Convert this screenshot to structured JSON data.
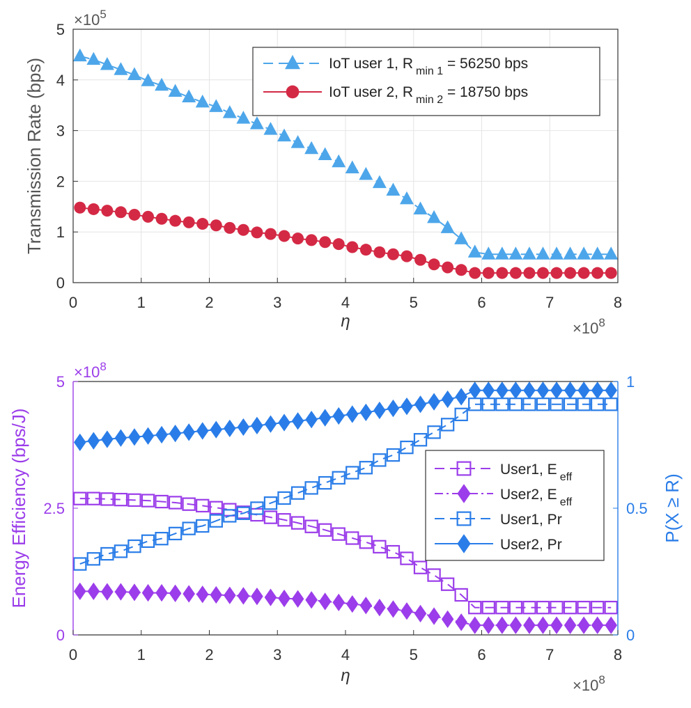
{
  "chart_data": [
    {
      "type": "line",
      "ylabel": "Transmission Rate (bps)",
      "xlabel": "η",
      "xlim": [
        0,
        8
      ],
      "ylim": [
        0,
        5
      ],
      "xticks": [
        "0",
        "1",
        "2",
        "3",
        "4",
        "5",
        "6",
        "7",
        "8"
      ],
      "yticks": [
        "0",
        "1",
        "2",
        "3",
        "4",
        "5"
      ],
      "x_multiplier": {
        "prefix": "×10",
        "exp": "8"
      },
      "y_multiplier": {
        "prefix": "×10",
        "exp": "5"
      },
      "grid": true,
      "legend_position": "top-right",
      "x": [
        0.1,
        0.3,
        0.5,
        0.7,
        0.9,
        1.1,
        1.3,
        1.5,
        1.7,
        1.9,
        2.1,
        2.3,
        2.5,
        2.7,
        2.9,
        3.1,
        3.3,
        3.5,
        3.7,
        3.9,
        4.1,
        4.3,
        4.5,
        4.7,
        4.9,
        5.1,
        5.3,
        5.5,
        5.7,
        5.9,
        6.1,
        6.3,
        6.5,
        6.7,
        6.9,
        7.1,
        7.3,
        7.5,
        7.7,
        7.9
      ],
      "series": [
        {
          "name": "IoT user 1",
          "legend_main": "IoT user 1, R",
          "legend_sub": "min 1",
          "legend_rest": " = 56250 bps",
          "color": "#4da6ea",
          "line_style": "dashed",
          "marker": "triangle",
          "values": [
            4.47,
            4.4,
            4.3,
            4.2,
            4.1,
            3.98,
            3.89,
            3.77,
            3.66,
            3.56,
            3.47,
            3.35,
            3.24,
            3.13,
            3.02,
            2.89,
            2.76,
            2.64,
            2.52,
            2.38,
            2.26,
            2.13,
            1.97,
            1.82,
            1.65,
            1.45,
            1.28,
            1.08,
            0.86,
            0.6,
            0.56,
            0.56,
            0.56,
            0.56,
            0.56,
            0.56,
            0.56,
            0.56,
            0.56,
            0.56
          ]
        },
        {
          "name": "IoT user 2",
          "legend_main": "IoT user 2, R",
          "legend_sub": "min 2",
          "legend_rest": " = 18750 bps",
          "color": "#d42945",
          "line_style": "solid",
          "marker": "circle",
          "values": [
            1.48,
            1.45,
            1.42,
            1.39,
            1.34,
            1.3,
            1.26,
            1.22,
            1.19,
            1.16,
            1.13,
            1.08,
            1.04,
            0.99,
            0.96,
            0.92,
            0.87,
            0.84,
            0.8,
            0.76,
            0.7,
            0.65,
            0.6,
            0.56,
            0.52,
            0.45,
            0.36,
            0.3,
            0.25,
            0.19,
            0.19,
            0.19,
            0.19,
            0.19,
            0.19,
            0.19,
            0.19,
            0.19,
            0.19,
            0.19
          ]
        }
      ]
    },
    {
      "type": "line",
      "ylabel_left": "Energy Efficiency (bps/J)",
      "ylabel_right": "P(X ≥ R)",
      "xlabel": "η",
      "xlim": [
        0,
        8
      ],
      "ylim_left": [
        0,
        5
      ],
      "ylim_right": [
        0,
        1
      ],
      "xticks": [
        "0",
        "1",
        "2",
        "3",
        "4",
        "5",
        "6",
        "7",
        "8"
      ],
      "yticks_left": [
        "0",
        "2.5",
        "5"
      ],
      "yticks_right": [
        "0",
        "0.5",
        "1"
      ],
      "x_multiplier": {
        "prefix": "×10",
        "exp": "8"
      },
      "y_multiplier": {
        "prefix": "×10",
        "exp": "8"
      },
      "left_axis_color": "#9b3dea",
      "right_axis_color": "#2a7de8",
      "grid": false,
      "legend_position": "right",
      "x": [
        0.1,
        0.3,
        0.5,
        0.7,
        0.9,
        1.1,
        1.3,
        1.5,
        1.7,
        1.9,
        2.1,
        2.3,
        2.5,
        2.7,
        2.9,
        3.1,
        3.3,
        3.5,
        3.7,
        3.9,
        4.1,
        4.3,
        4.5,
        4.7,
        4.9,
        5.1,
        5.3,
        5.5,
        5.7,
        5.9,
        6.1,
        6.3,
        6.5,
        6.7,
        6.9,
        7.1,
        7.3,
        7.5,
        7.7,
        7.9
      ],
      "series": [
        {
          "name": "User1, Eeff",
          "legend_main": "User1, E",
          "legend_sub": "eff",
          "axis": "left",
          "color": "#9b3dea",
          "line_style": "dashed",
          "marker": "square-open",
          "values": [
            2.69,
            2.69,
            2.68,
            2.67,
            2.66,
            2.65,
            2.63,
            2.61,
            2.58,
            2.55,
            2.51,
            2.47,
            2.42,
            2.37,
            2.32,
            2.27,
            2.21,
            2.14,
            2.07,
            1.99,
            1.91,
            1.83,
            1.74,
            1.64,
            1.51,
            1.33,
            1.18,
            1.0,
            0.79,
            0.54,
            0.54,
            0.54,
            0.54,
            0.54,
            0.54,
            0.54,
            0.54,
            0.54,
            0.54,
            0.54
          ]
        },
        {
          "name": "User2, Eeff",
          "legend_main": "User2, E",
          "legend_sub": "eff",
          "axis": "left",
          "color": "#9b3dea",
          "line_style": "dashdot",
          "marker": "diamond",
          "values": [
            0.86,
            0.86,
            0.85,
            0.85,
            0.84,
            0.83,
            0.83,
            0.82,
            0.81,
            0.8,
            0.79,
            0.78,
            0.77,
            0.76,
            0.74,
            0.72,
            0.71,
            0.69,
            0.66,
            0.64,
            0.61,
            0.58,
            0.54,
            0.51,
            0.47,
            0.42,
            0.37,
            0.31,
            0.25,
            0.19,
            0.19,
            0.19,
            0.19,
            0.19,
            0.19,
            0.19,
            0.19,
            0.19,
            0.19,
            0.19
          ]
        },
        {
          "name": "User1, Pr",
          "legend_main": "User1, Pr",
          "legend_sub": "",
          "axis": "right",
          "color": "#2a7de8",
          "line_style": "dashed",
          "marker": "square-open",
          "values": [
            0.28,
            0.3,
            0.32,
            0.33,
            0.35,
            0.37,
            0.38,
            0.4,
            0.42,
            0.43,
            0.45,
            0.47,
            0.48,
            0.5,
            0.52,
            0.54,
            0.56,
            0.58,
            0.6,
            0.62,
            0.64,
            0.66,
            0.69,
            0.71,
            0.74,
            0.77,
            0.8,
            0.83,
            0.87,
            0.91,
            0.91,
            0.91,
            0.91,
            0.91,
            0.91,
            0.91,
            0.91,
            0.91,
            0.91,
            0.91
          ]
        },
        {
          "name": "User2, Pr",
          "legend_main": "User2, Pr",
          "legend_sub": "",
          "axis": "right",
          "color": "#2a7de8",
          "line_style": "solid",
          "marker": "diamond",
          "values": [
            0.76,
            0.766,
            0.772,
            0.777,
            0.781,
            0.785,
            0.79,
            0.795,
            0.8,
            0.805,
            0.81,
            0.815,
            0.82,
            0.826,
            0.832,
            0.838,
            0.844,
            0.85,
            0.857,
            0.864,
            0.871,
            0.878,
            0.886,
            0.894,
            0.902,
            0.91,
            0.92,
            0.93,
            0.94,
            0.965,
            0.965,
            0.965,
            0.965,
            0.965,
            0.965,
            0.965,
            0.965,
            0.965,
            0.965,
            0.965
          ]
        }
      ]
    }
  ]
}
